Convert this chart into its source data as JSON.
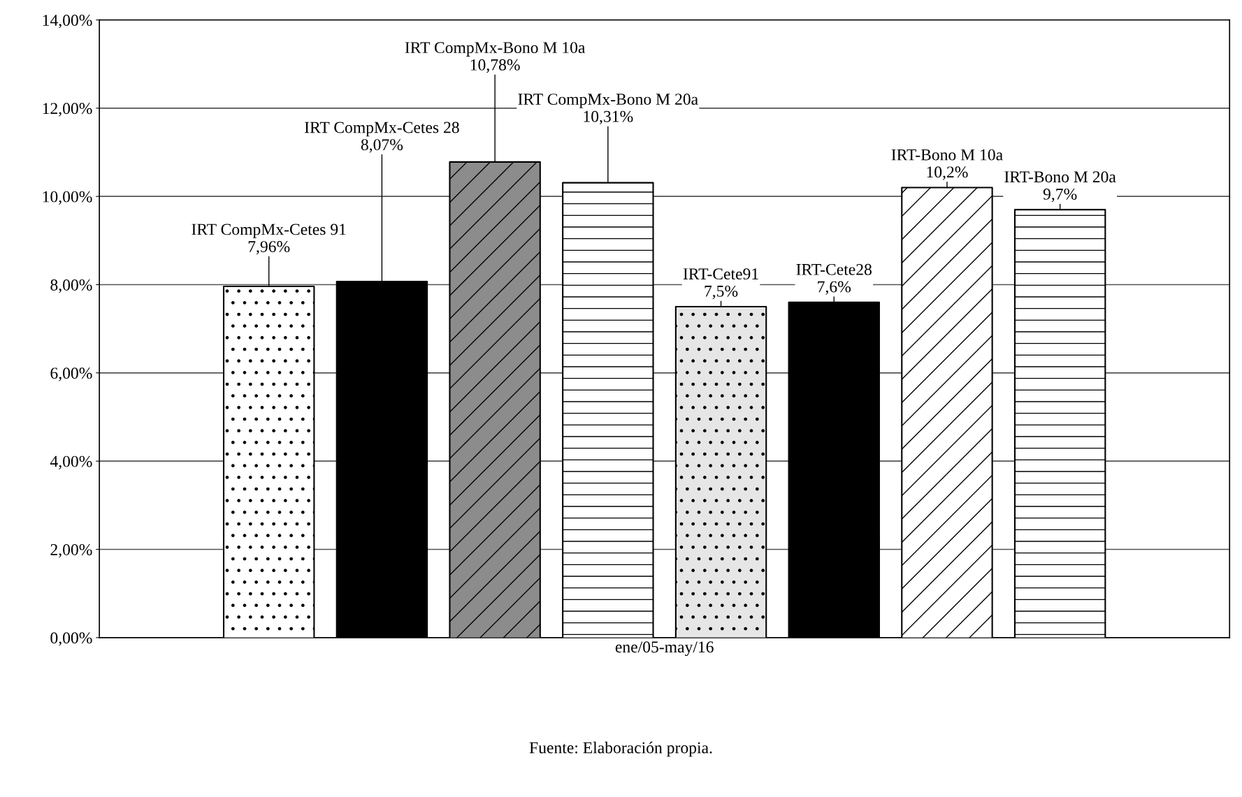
{
  "chart_data": {
    "type": "bar",
    "categories": [
      "ene/05-may/16"
    ],
    "series": [
      {
        "name": "IRT CompMx-Cetes 91",
        "color": "#ffffff",
        "values": [
          7.96
        ],
        "value_labels": [
          "7,96%"
        ]
      },
      {
        "name": "IRT CompMx-Cetes 28",
        "color": "#000000",
        "values": [
          8.07
        ],
        "value_labels": [
          "8,07%"
        ]
      },
      {
        "name": "IRT CompMx-Bono M 10a",
        "color": "#8c8c8c",
        "values": [
          10.78
        ],
        "value_labels": [
          "10,78%"
        ]
      },
      {
        "name": "IRT CompMx-Bono M 20a",
        "color": "#ffffff",
        "values": [
          10.31
        ],
        "value_labels": [
          "10,31%"
        ]
      },
      {
        "name": "IRT-Cete91",
        "color": "#e6e6e6",
        "values": [
          7.5
        ],
        "value_labels": [
          "7,5%"
        ]
      },
      {
        "name": "IRT-Cete28",
        "color": "#000000",
        "values": [
          7.6
        ],
        "value_labels": [
          "7,6%"
        ]
      },
      {
        "name": "IRT-Bono M 10a",
        "color": "#ffffff",
        "values": [
          10.2
        ],
        "value_labels": [
          "10,2%"
        ]
      },
      {
        "name": "IRT-Bono M 20a",
        "color": "#ffffff",
        "values": [
          9.7
        ],
        "value_labels": [
          "9,7%"
        ]
      }
    ],
    "ylim": [
      0,
      14
    ],
    "yticks": [
      {
        "value": 0,
        "label": "0,00%"
      },
      {
        "value": 2,
        "label": "2,00%"
      },
      {
        "value": 4,
        "label": "4,00%"
      },
      {
        "value": 6,
        "label": "6,00%"
      },
      {
        "value": 8,
        "label": "8,00%"
      },
      {
        "value": 10,
        "label": "10,00%"
      },
      {
        "value": 12,
        "label": "12,00%"
      },
      {
        "value": 14,
        "label": "14,00%"
      }
    ],
    "grid": "y",
    "legend": false,
    "annotations": [
      "Fuente: Elaboración propia."
    ]
  }
}
